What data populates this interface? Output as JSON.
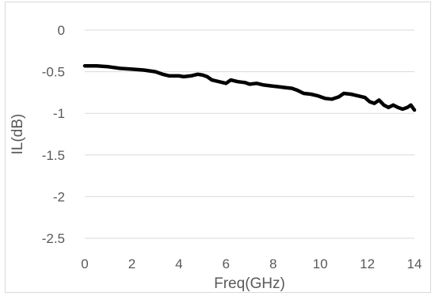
{
  "chart_data": {
    "type": "line",
    "title": "",
    "xlabel": "Freq(GHz)",
    "ylabel": "IL(dB)",
    "xlim": [
      0,
      14
    ],
    "ylim": [
      -2.5,
      0
    ],
    "x_ticks": [
      0,
      2,
      4,
      6,
      8,
      10,
      12,
      14
    ],
    "y_ticks": [
      0,
      -0.5,
      -1,
      -1.5,
      -2,
      -2.5
    ],
    "x_tick_labels": [
      "0",
      "2",
      "4",
      "6",
      "8",
      "10",
      "12",
      "14"
    ],
    "y_tick_labels": [
      "0",
      "-0.5",
      "-1",
      "-1.5",
      "-2",
      "-2.5"
    ],
    "grid": "horizontal",
    "legend": "none",
    "series": [
      {
        "color": "#000000",
        "x": [
          0,
          0.5,
          1,
          1.5,
          2,
          2.5,
          3,
          3.3,
          3.6,
          4,
          4.2,
          4.5,
          4.8,
          5,
          5.2,
          5.4,
          5.7,
          6,
          6.2,
          6.5,
          6.8,
          7,
          7.3,
          7.6,
          7.9,
          8.2,
          8.5,
          8.8,
          9,
          9.3,
          9.6,
          9.9,
          10.2,
          10.5,
          10.8,
          11,
          11.3,
          11.6,
          11.9,
          12.1,
          12.3,
          12.5,
          12.7,
          12.9,
          13.1,
          13.3,
          13.5,
          13.7,
          13.85,
          14
        ],
        "y": [
          -0.43,
          -0.43,
          -0.44,
          -0.46,
          -0.47,
          -0.48,
          -0.5,
          -0.53,
          -0.55,
          -0.55,
          -0.56,
          -0.55,
          -0.53,
          -0.54,
          -0.56,
          -0.6,
          -0.62,
          -0.64,
          -0.6,
          -0.62,
          -0.63,
          -0.65,
          -0.64,
          -0.66,
          -0.67,
          -0.68,
          -0.69,
          -0.7,
          -0.72,
          -0.76,
          -0.77,
          -0.79,
          -0.82,
          -0.83,
          -0.8,
          -0.76,
          -0.77,
          -0.79,
          -0.81,
          -0.86,
          -0.88,
          -0.84,
          -0.9,
          -0.93,
          -0.9,
          -0.93,
          -0.95,
          -0.93,
          -0.9,
          -0.96
        ]
      }
    ]
  }
}
